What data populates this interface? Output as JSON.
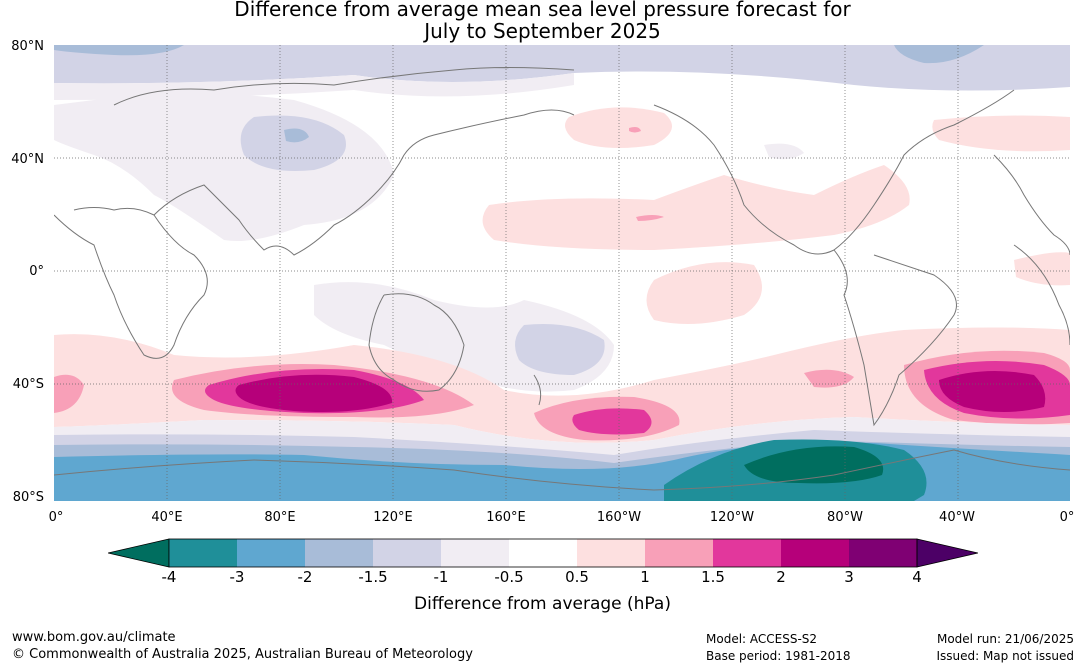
{
  "title_line1": "Difference from average mean sea level pressure forecast for",
  "title_line2": "July to September 2025",
  "lat_labels": [
    "80°N",
    "40°N",
    "0°",
    "40°S",
    "80°S"
  ],
  "lon_labels": [
    "0°",
    "40°E",
    "80°E",
    "120°E",
    "160°E",
    "160°W",
    "120°W",
    "80°W",
    "40°W",
    "0°"
  ],
  "colorbar": {
    "title": "Difference from average (hPa)",
    "tick_labels": [
      "-4",
      "-3",
      "-2",
      "-1.5",
      "-1",
      "-0.5",
      "0.5",
      "1",
      "1.5",
      "2",
      "3",
      "4"
    ],
    "colors": [
      "#006e5f",
      "#1f8f99",
      "#5fa7d0",
      "#a8bcd8",
      "#d2d3e6",
      "#f1edf3",
      "#ffffff",
      "#fde0e0",
      "#f8a0b8",
      "#e2379c",
      "#b6007a",
      "#7f0073",
      "#4c0066"
    ]
  },
  "footer": {
    "website": "www.bom.gov.au/climate",
    "copyright": "© Commonwealth of Australia 2025, Australian Bureau of Meteorology",
    "model": "Model: ACCESS-S2",
    "base_period": "Base period: 1981-2018",
    "model_run": "Model run: 21/06/2025",
    "issued": "Issued: Map not issued"
  }
}
